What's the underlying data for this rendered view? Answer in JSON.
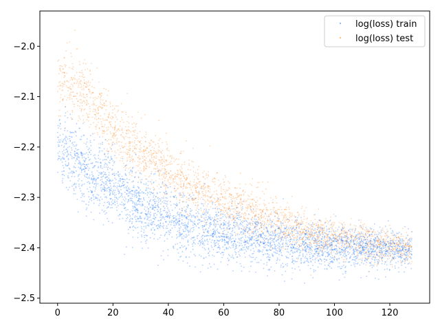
{
  "chart_data": {
    "type": "scatter",
    "title": "",
    "xlabel": "",
    "ylabel": "",
    "xlim": [
      -6.4,
      134.4
    ],
    "ylim": [
      -2.51,
      -1.93
    ],
    "xticks": [
      0,
      20,
      40,
      60,
      80,
      100,
      120
    ],
    "xtick_labels": [
      "0",
      "20",
      "40",
      "60",
      "80",
      "100",
      "120"
    ],
    "yticks": [
      -2.0,
      -2.1,
      -2.2,
      -2.3,
      -2.4,
      -2.5
    ],
    "ytick_labels": [
      "−2.0",
      "−2.1",
      "−2.2",
      "−2.3",
      "−2.4",
      "−2.5"
    ],
    "grid": false,
    "legend_position": "upper-right",
    "series": [
      {
        "name": "log(loss) train",
        "color": "#1f77ff",
        "x": [
          0,
          2,
          4,
          6,
          8,
          10,
          15,
          20,
          25,
          30,
          40,
          50,
          60,
          70,
          80,
          90,
          100,
          110,
          120,
          128
        ],
        "y": [
          -2.19,
          -2.21,
          -2.22,
          -2.23,
          -2.24,
          -2.25,
          -2.26,
          -2.28,
          -2.3,
          -2.32,
          -2.34,
          -2.36,
          -2.37,
          -2.38,
          -2.39,
          -2.395,
          -2.4,
          -2.4,
          -2.405,
          -2.405
        ]
      },
      {
        "name": "log(loss) test",
        "color": "#ff7f0e",
        "x": [
          0,
          2,
          4,
          6,
          8,
          10,
          15,
          20,
          25,
          30,
          40,
          50,
          60,
          70,
          80,
          90,
          100,
          110,
          120,
          128
        ],
        "y": [
          -2.09,
          -2.07,
          -2.07,
          -2.08,
          -2.09,
          -2.1,
          -2.13,
          -2.16,
          -2.19,
          -2.21,
          -2.25,
          -2.28,
          -2.31,
          -2.33,
          -2.35,
          -2.37,
          -2.38,
          -2.39,
          -2.395,
          -2.4
        ]
      }
    ]
  }
}
